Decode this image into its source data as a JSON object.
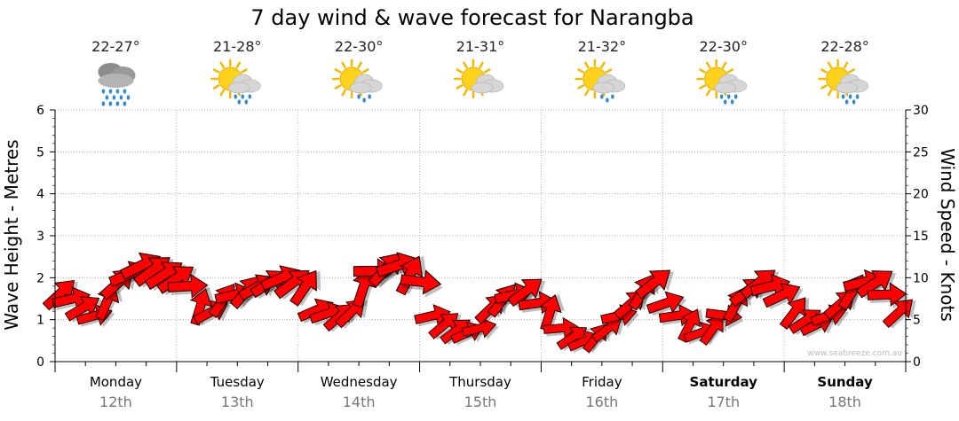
{
  "chart_data": {
    "type": "line",
    "title": "7 day wind & wave forecast for Narangba",
    "ylabel_left": "Wave Height - Metres",
    "ylabel_right": "Wind Speed - Knots",
    "ylim_left": [
      0,
      6
    ],
    "ylim_right": [
      0,
      30
    ],
    "yticks_left": [
      "0",
      "1",
      "2",
      "3",
      "4",
      "5",
      "6"
    ],
    "yticks_right": [
      "0",
      "5",
      "10",
      "15",
      "20",
      "25",
      "30"
    ],
    "grid": true,
    "days": [
      {
        "name": "Monday",
        "date": "12th",
        "temp": "22-27°",
        "icon": "rain-cloud-icon",
        "bold": false
      },
      {
        "name": "Tuesday",
        "date": "13th",
        "temp": "21-28°",
        "icon": "sun-cloud-rain-icon",
        "bold": false
      },
      {
        "name": "Wednesday",
        "date": "14th",
        "temp": "22-30°",
        "icon": "sun-cloud-showers-icon",
        "bold": false
      },
      {
        "name": "Thursday",
        "date": "15th",
        "temp": "21-31°",
        "icon": "sun-cloud-icon",
        "bold": false
      },
      {
        "name": "Friday",
        "date": "16th",
        "temp": "21-32°",
        "icon": "sun-cloud-showers-icon",
        "bold": false
      },
      {
        "name": "Saturday",
        "date": "17th",
        "temp": "22-30°",
        "icon": "sun-cloud-rain-icon",
        "bold": true
      },
      {
        "name": "Sunday",
        "date": "18th",
        "temp": "22-28°",
        "icon": "sun-cloud-rain-icon",
        "bold": true
      }
    ],
    "series": [
      {
        "name": "Wind Speed",
        "unit": "knots",
        "arrow_color": "#ff0000",
        "values": [
          8.2,
          7.5,
          6.5,
          5.5,
          7.3,
          9.5,
          10.5,
          11.5,
          11.0,
          10.5,
          10.0,
          9.0,
          6.7,
          6.0,
          7.5,
          8.0,
          8.5,
          9.0,
          9.5,
          10.0,
          9.5,
          9.0,
          6.2,
          5.8,
          5.5,
          6.0,
          9.0,
          10.8,
          11.2,
          11.5,
          10.5,
          9.5,
          5.5,
          4.5,
          3.8,
          3.5,
          4.0,
          6.5,
          7.5,
          8.0,
          8.5,
          7.0,
          6.0,
          4.0,
          3.0,
          2.5,
          3.0,
          4.0,
          5.5,
          7.0,
          8.5,
          9.5,
          7.0,
          5.5,
          4.5,
          3.5,
          4.0,
          5.5,
          7.0,
          8.5,
          9.5,
          9.0,
          8.0,
          6.0,
          5.0,
          4.5,
          5.5,
          7.0,
          8.5,
          9.5,
          9.5,
          8.0,
          6.0
        ]
      }
    ],
    "credit": "www.seabreeze.com.au"
  }
}
